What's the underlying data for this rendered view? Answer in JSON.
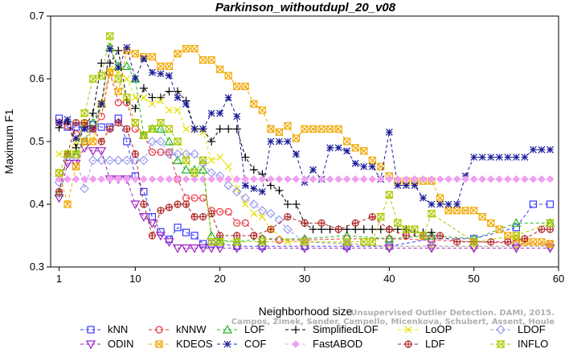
{
  "chart_data": {
    "type": "line",
    "title": "Parkinson_withoutdupl_20_v08",
    "xlabel": "Neighborhood size",
    "ylabel": "Maximum F1",
    "xlim": [
      0,
      60
    ],
    "ylim": [
      0.3,
      0.7
    ],
    "xticks": [
      1,
      10,
      20,
      30,
      40,
      50,
      60
    ],
    "yticks": [
      0.3,
      0.4,
      0.5,
      0.6,
      0.7
    ],
    "grid": false,
    "legend_position": "bottom",
    "watermark": [
      "Unsupervised Outlier Detection. DAMI, 2015.",
      "Campos, Zimek, Sander, Campello, Micenkova, Schubert, Assent, Houle"
    ],
    "series": [
      {
        "name": "kNN",
        "color": "#3a3aff",
        "marker": "square",
        "x": [
          1,
          2,
          3,
          4,
          5,
          6,
          7,
          8,
          9,
          10,
          11,
          12,
          13,
          14,
          15,
          16,
          17,
          18,
          19,
          20,
          22,
          25,
          30,
          35,
          40,
          45,
          50,
          55,
          57,
          59
        ],
        "y": [
          0.537,
          0.523,
          0.523,
          0.523,
          0.527,
          0.523,
          0.523,
          0.537,
          0.5,
          0.445,
          0.42,
          0.38,
          0.356,
          0.344,
          0.363,
          0.355,
          0.35,
          0.337,
          0.337,
          0.337,
          0.333,
          0.333,
          0.333,
          0.333,
          0.333,
          0.345,
          0.345,
          0.363,
          0.4,
          0.4
        ]
      },
      {
        "name": "kNNW",
        "color": "#e8343e",
        "marker": "circle",
        "x": [
          1,
          2,
          3,
          4,
          5,
          6,
          7,
          8,
          9,
          10,
          11,
          12,
          13,
          14,
          15,
          16,
          17,
          18,
          19,
          20,
          21,
          22,
          23,
          25,
          27,
          30,
          35,
          40,
          45,
          50,
          55,
          59
        ],
        "y": [
          0.53,
          0.525,
          0.512,
          0.5,
          0.52,
          0.54,
          0.61,
          0.562,
          0.562,
          0.52,
          0.51,
          0.483,
          0.483,
          0.483,
          0.44,
          0.41,
          0.41,
          0.41,
          0.39,
          0.388,
          0.388,
          0.37,
          0.37,
          0.345,
          0.343,
          0.343,
          0.345,
          0.345,
          0.343,
          0.34,
          0.338,
          0.337
        ]
      },
      {
        "name": "LOF",
        "color": "#28b428",
        "marker": "triangle-up",
        "x": [
          1,
          2,
          3,
          4,
          5,
          6,
          7,
          8,
          9,
          10,
          11,
          12,
          13,
          14,
          15,
          16,
          17,
          18,
          19,
          20,
          22,
          25,
          30,
          35,
          40,
          45,
          50,
          55,
          59
        ],
        "y": [
          0.418,
          0.48,
          0.48,
          0.5,
          0.53,
          0.56,
          0.65,
          0.62,
          0.62,
          0.6,
          0.51,
          0.52,
          0.52,
          0.5,
          0.47,
          0.455,
          0.455,
          0.455,
          0.35,
          0.343,
          0.34,
          0.345,
          0.345,
          0.35,
          0.345,
          0.35,
          0.345,
          0.37,
          0.37
        ]
      },
      {
        "name": "SimplifiedLOF",
        "color": "#000000",
        "marker": "plus",
        "x": [
          1,
          2,
          3,
          4,
          5,
          6,
          7,
          8,
          9,
          10,
          11,
          12,
          13,
          14,
          15,
          16,
          17,
          18,
          19,
          20,
          21,
          22,
          23,
          24,
          25,
          26,
          27,
          28,
          29,
          30,
          31,
          32,
          33,
          34,
          35,
          36,
          37,
          38,
          39,
          40,
          41,
          42,
          43,
          44,
          45
        ],
        "y": [
          0.522,
          0.532,
          0.49,
          0.523,
          0.545,
          0.625,
          0.625,
          0.645,
          0.565,
          0.553,
          0.585,
          0.57,
          0.57,
          0.58,
          0.58,
          0.565,
          0.52,
          0.52,
          0.5,
          0.52,
          0.52,
          0.52,
          0.475,
          0.455,
          0.448,
          0.43,
          0.422,
          0.4,
          0.4,
          0.37,
          0.36,
          0.36,
          0.36,
          0.36,
          0.36,
          0.36,
          0.36,
          0.36,
          0.36,
          0.36,
          0.36,
          0.36,
          0.355,
          0.355,
          0.355
        ]
      },
      {
        "name": "LoOP",
        "color": "#e8e000",
        "marker": "x",
        "x": [
          1,
          2,
          3,
          4,
          5,
          6,
          7,
          8,
          9,
          10,
          11,
          12,
          13,
          14,
          15,
          16,
          17,
          18,
          19,
          20,
          21,
          22,
          23,
          24,
          25,
          26,
          28,
          30,
          35,
          40,
          45,
          50,
          55,
          59
        ],
        "y": [
          0.48,
          0.48,
          0.5,
          0.53,
          0.5,
          0.56,
          0.615,
          0.61,
          0.6,
          0.57,
          0.57,
          0.56,
          0.565,
          0.55,
          0.55,
          0.52,
          0.52,
          0.515,
          0.47,
          0.475,
          0.46,
          0.425,
          0.4,
          0.385,
          0.38,
          0.36,
          0.34,
          0.34,
          0.337,
          0.333,
          0.333,
          0.333,
          0.333,
          0.333
        ]
      },
      {
        "name": "LDOF",
        "color": "#9a9aee",
        "marker": "diamond",
        "x": [
          1,
          2,
          3,
          4,
          5,
          6,
          7,
          8,
          9,
          10,
          11,
          12,
          13,
          14,
          15,
          16,
          17,
          18,
          19,
          20,
          21,
          22,
          23,
          24,
          25,
          26,
          27,
          28,
          30,
          35,
          40,
          45,
          50,
          55,
          59
        ],
        "y": [
          0.435,
          0.475,
          0.475,
          0.425,
          0.47,
          0.47,
          0.47,
          0.47,
          0.47,
          0.47,
          0.47,
          0.5,
          0.5,
          0.48,
          0.48,
          0.48,
          0.48,
          0.465,
          0.45,
          0.445,
          0.43,
          0.42,
          0.41,
          0.4,
          0.39,
          0.385,
          0.375,
          0.36,
          0.34,
          0.337,
          0.333,
          0.333,
          0.333,
          0.333,
          0.333
        ]
      },
      {
        "name": "ODIN",
        "color": "#a020c0",
        "marker": "triangle-down",
        "x": [
          1,
          2,
          3,
          4,
          5,
          6,
          7,
          8,
          9,
          10,
          11,
          12,
          13,
          14,
          15,
          16,
          17,
          18,
          19,
          20,
          22,
          25,
          30,
          35,
          40,
          45,
          50,
          55,
          59
        ],
        "y": [
          0.41,
          0.465,
          0.465,
          0.49,
          0.485,
          0.485,
          0.44,
          0.44,
          0.44,
          0.4,
          0.38,
          0.37,
          0.35,
          0.34,
          0.33,
          0.33,
          0.33,
          0.33,
          0.33,
          0.33,
          0.33,
          0.33,
          0.33,
          0.33,
          0.33,
          0.33,
          0.33,
          0.33,
          0.33
        ]
      },
      {
        "name": "KDEOS",
        "color": "#f0a800",
        "marker": "square-x",
        "x": [
          1,
          2,
          3,
          4,
          5,
          6,
          7,
          8,
          9,
          10,
          11,
          12,
          13,
          14,
          15,
          16,
          17,
          18,
          19,
          20,
          21,
          22,
          23,
          24,
          25,
          26,
          27,
          28,
          29,
          30,
          31,
          32,
          33,
          34,
          35,
          36,
          37,
          38,
          39,
          40,
          41,
          42,
          43,
          44,
          45,
          46,
          47,
          48,
          49,
          50,
          51,
          52,
          53,
          54,
          55,
          56,
          57,
          58,
          59
        ],
        "y": [
          0.45,
          0.4,
          0.46,
          0.5,
          0.5,
          0.56,
          0.61,
          0.58,
          0.645,
          0.64,
          0.635,
          0.635,
          0.62,
          0.62,
          0.64,
          0.648,
          0.648,
          0.63,
          0.63,
          0.615,
          0.605,
          0.588,
          0.588,
          0.56,
          0.55,
          0.52,
          0.515,
          0.525,
          0.505,
          0.52,
          0.52,
          0.52,
          0.52,
          0.52,
          0.5,
          0.49,
          0.485,
          0.47,
          0.46,
          0.445,
          0.437,
          0.437,
          0.437,
          0.437,
          0.437,
          0.41,
          0.39,
          0.39,
          0.39,
          0.39,
          0.38,
          0.37,
          0.36,
          0.35,
          0.345,
          0.34,
          0.34,
          0.34,
          0.337
        ]
      },
      {
        "name": "COF",
        "color": "#1a1a9a",
        "marker": "star",
        "x": [
          1,
          2,
          3,
          4,
          5,
          6,
          7,
          8,
          9,
          10,
          11,
          12,
          13,
          14,
          15,
          16,
          17,
          18,
          19,
          20,
          21,
          22,
          23,
          24,
          25,
          26,
          27,
          28,
          29,
          30,
          31,
          32,
          33,
          34,
          35,
          36,
          37,
          38,
          39,
          40,
          41,
          42,
          43,
          44,
          45,
          46,
          47,
          48,
          49,
          50,
          51,
          52,
          53,
          54,
          55,
          56,
          57,
          58,
          59
        ],
        "y": [
          0.53,
          0.535,
          0.505,
          0.52,
          0.52,
          0.56,
          0.648,
          0.618,
          0.65,
          0.6,
          0.632,
          0.61,
          0.608,
          0.605,
          0.57,
          0.56,
          0.52,
          0.52,
          0.545,
          0.545,
          0.57,
          0.54,
          0.43,
          0.425,
          0.42,
          0.5,
          0.5,
          0.5,
          0.48,
          0.435,
          0.455,
          0.44,
          0.49,
          0.49,
          0.485,
          0.465,
          0.46,
          0.46,
          0.44,
          0.515,
          0.43,
          0.43,
          0.43,
          0.41,
          0.4,
          0.4,
          0.4,
          0.4,
          0.445,
          0.475,
          0.475,
          0.475,
          0.475,
          0.475,
          0.475,
          0.475,
          0.487,
          0.487,
          0.487
        ]
      },
      {
        "name": "FastABOD",
        "color": "#f0a0f0",
        "marker": "diamond-filled",
        "x": [
          1,
          2,
          3,
          4,
          5,
          6,
          7,
          8,
          9,
          10,
          11,
          12,
          13,
          14,
          15,
          16,
          17,
          18,
          19,
          20,
          21,
          22,
          23,
          24,
          25,
          26,
          27,
          28,
          29,
          30,
          31,
          32,
          33,
          34,
          35,
          36,
          37,
          38,
          39,
          40,
          41,
          42,
          43,
          44,
          45,
          46,
          47,
          48,
          49,
          50,
          51,
          52,
          53,
          54,
          55,
          56,
          57,
          58,
          59
        ],
        "y": [
          0.44,
          0.44,
          0.44,
          0.44,
          0.44,
          0.44,
          0.44,
          0.44,
          0.44,
          0.44,
          0.44,
          0.44,
          0.44,
          0.44,
          0.44,
          0.44,
          0.44,
          0.44,
          0.44,
          0.44,
          0.44,
          0.44,
          0.44,
          0.44,
          0.44,
          0.44,
          0.44,
          0.44,
          0.44,
          0.44,
          0.44,
          0.44,
          0.44,
          0.44,
          0.44,
          0.44,
          0.44,
          0.44,
          0.44,
          0.44,
          0.44,
          0.44,
          0.44,
          0.44,
          0.44,
          0.44,
          0.44,
          0.44,
          0.44,
          0.44,
          0.44,
          0.44,
          0.44,
          0.44,
          0.44,
          0.44,
          0.44,
          0.44,
          0.44
        ]
      },
      {
        "name": "LDF",
        "color": "#b02828",
        "marker": "circle-plus",
        "x": [
          1,
          2,
          3,
          4,
          5,
          6,
          7,
          8,
          9,
          10,
          11,
          12,
          13,
          14,
          15,
          16,
          17,
          18,
          19,
          20,
          22,
          24,
          26,
          28,
          30,
          32,
          34,
          36,
          38,
          40,
          42,
          44,
          46,
          48,
          50,
          52,
          54,
          56,
          58,
          59
        ],
        "y": [
          0.42,
          0.48,
          0.53,
          0.53,
          0.52,
          0.5,
          0.52,
          0.53,
          0.52,
          0.48,
          0.4,
          0.35,
          0.39,
          0.395,
          0.4,
          0.4,
          0.38,
          0.38,
          0.385,
          0.35,
          0.35,
          0.35,
          0.36,
          0.38,
          0.37,
          0.37,
          0.36,
          0.37,
          0.38,
          0.36,
          0.35,
          0.35,
          0.35,
          0.34,
          0.34,
          0.34,
          0.34,
          0.345,
          0.36,
          0.36
        ]
      },
      {
        "name": "INFLO",
        "color": "#b0c800",
        "marker": "hourglass",
        "x": [
          1,
          2,
          3,
          4,
          5,
          6,
          7,
          8,
          9,
          10,
          11,
          12,
          13,
          14,
          15,
          16,
          17,
          18,
          19,
          20,
          22,
          25,
          30,
          35,
          37,
          38,
          39,
          40,
          41,
          42,
          43,
          44,
          45,
          50,
          55,
          59
        ],
        "y": [
          0.45,
          0.48,
          0.48,
          0.545,
          0.6,
          0.605,
          0.668,
          0.6,
          0.57,
          0.53,
          0.51,
          0.52,
          0.53,
          0.52,
          0.5,
          0.47,
          0.45,
          0.47,
          0.34,
          0.34,
          0.34,
          0.34,
          0.34,
          0.34,
          0.34,
          0.34,
          0.38,
          0.415,
          0.37,
          0.36,
          0.36,
          0.35,
          0.385,
          0.34,
          0.35,
          0.37
        ]
      }
    ]
  }
}
